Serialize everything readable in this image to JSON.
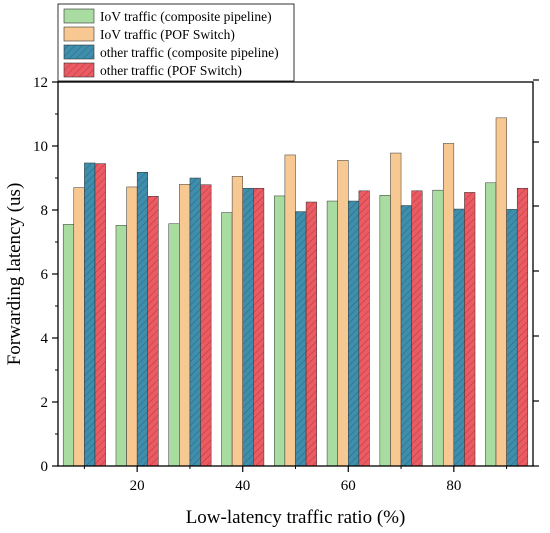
{
  "chart_data": {
    "type": "bar",
    "xlabel": "Low-latency traffic ratio (%)",
    "ylabel": "Forwarding latency (us)",
    "ylim": [
      0,
      12
    ],
    "xlim": [
      5,
      95
    ],
    "yticks": [
      0,
      2,
      4,
      6,
      8,
      10,
      12
    ],
    "xticks": [
      20,
      40,
      60,
      80
    ],
    "categories": [
      10,
      20,
      30,
      40,
      50,
      60,
      70,
      80,
      90
    ],
    "legend_position": "top-left",
    "series": [
      {
        "name": "IoV traffic (composite pipeline)",
        "color": "#a9dca0",
        "hatch": false,
        "values": [
          7.55,
          7.52,
          7.57,
          7.92,
          8.44,
          8.28,
          8.46,
          8.62,
          8.85
        ]
      },
      {
        "name": "IoV traffic (POF Switch)",
        "color": "#f8c892",
        "hatch": false,
        "values": [
          8.7,
          8.72,
          8.8,
          9.05,
          9.72,
          9.55,
          9.78,
          10.08,
          10.88
        ]
      },
      {
        "name": "other traffic (composite pipeline)",
        "color": "#3e8fae",
        "hatch": true,
        "values": [
          9.47,
          9.18,
          9.0,
          8.68,
          7.95,
          8.28,
          8.14,
          8.03,
          8.02
        ]
      },
      {
        "name": "other traffic (POF Switch)",
        "color": "#ee5a62",
        "hatch": true,
        "values": [
          9.45,
          8.43,
          8.79,
          8.68,
          8.25,
          8.6,
          8.6,
          8.55,
          8.68
        ]
      }
    ]
  }
}
